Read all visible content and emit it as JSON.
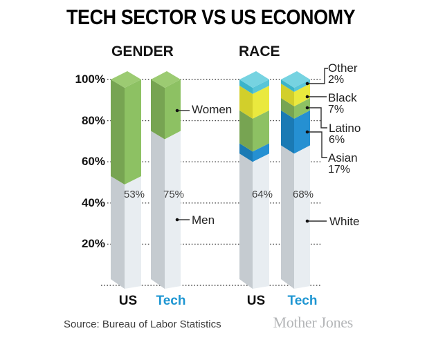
{
  "title": "TECH SECTOR VS US ECONOMY",
  "source": "Source: Bureau of Labor Statistics",
  "brand": "Mother Jones",
  "colors": {
    "tech_label_blue": "#1e96d2",
    "gray_front": "#e8edf1",
    "gray_side": "#c5cbd0",
    "green_front": "#8dc163",
    "green_side": "#77a452",
    "green_top": "#9ccb72",
    "blue_front": "#2590d2",
    "blue_side": "#1a7ab4",
    "yellow_front": "#eae93e",
    "yellow_side": "#d2cf2b",
    "cyan_front": "#58c5d8",
    "cyan_side": "#3cb4c9",
    "cyan_top": "#76d3e1",
    "gridline": "#4d4d4d",
    "title_text": "#000000",
    "brand_gray": "#b4b6b8"
  },
  "y_axis": {
    "ticks": [
      "100%",
      "80%",
      "60%",
      "40%",
      "20%"
    ],
    "tick_values": [
      100,
      80,
      60,
      40,
      20
    ]
  },
  "chart_data": {
    "type": "bar",
    "stacked": true,
    "unit": "percent",
    "ylim": [
      0,
      100
    ],
    "grid": true,
    "title": "TECH SECTOR VS US ECONOMY",
    "groups": [
      {
        "label": "GENDER",
        "bars": [
          {
            "label": "US",
            "value_label": "53%",
            "segments": [
              {
                "name": "Men",
                "value": 53,
                "color": "gray"
              },
              {
                "name": "Women",
                "value": 47,
                "color": "green"
              }
            ]
          },
          {
            "label": "Tech",
            "value_label": "75%",
            "segments": [
              {
                "name": "Men",
                "value": 75,
                "color": "gray"
              },
              {
                "name": "Women",
                "value": 25,
                "color": "green"
              }
            ]
          }
        ],
        "callouts": [
          {
            "label": "Women"
          },
          {
            "label": "Men"
          }
        ]
      },
      {
        "label": "RACE",
        "bars": [
          {
            "label": "US",
            "value_label": "64%",
            "segments": [
              {
                "name": "White",
                "value": 64,
                "color": "gray"
              },
              {
                "name": "Asian",
                "value": 5,
                "color": "blue"
              },
              {
                "name": "Latino",
                "value": 16,
                "color": "green"
              },
              {
                "name": "Black",
                "value": 12,
                "color": "yellow"
              },
              {
                "name": "Other",
                "value": 3,
                "color": "cyan"
              }
            ]
          },
          {
            "label": "Tech",
            "value_label": "68%",
            "segments": [
              {
                "name": "White",
                "value": 68,
                "color": "gray"
              },
              {
                "name": "Asian",
                "value": 17,
                "color": "blue"
              },
              {
                "name": "Latino",
                "value": 6,
                "color": "green"
              },
              {
                "name": "Black",
                "value": 7,
                "color": "yellow"
              },
              {
                "name": "Other",
                "value": 2,
                "color": "cyan"
              }
            ]
          }
        ],
        "callouts": [
          {
            "label": "Other",
            "value": "2%"
          },
          {
            "label": "Black",
            "value": "7%"
          },
          {
            "label": "Latino",
            "value": "6%"
          },
          {
            "label": "Asian",
            "value": "17%"
          }
        ]
      }
    ]
  }
}
